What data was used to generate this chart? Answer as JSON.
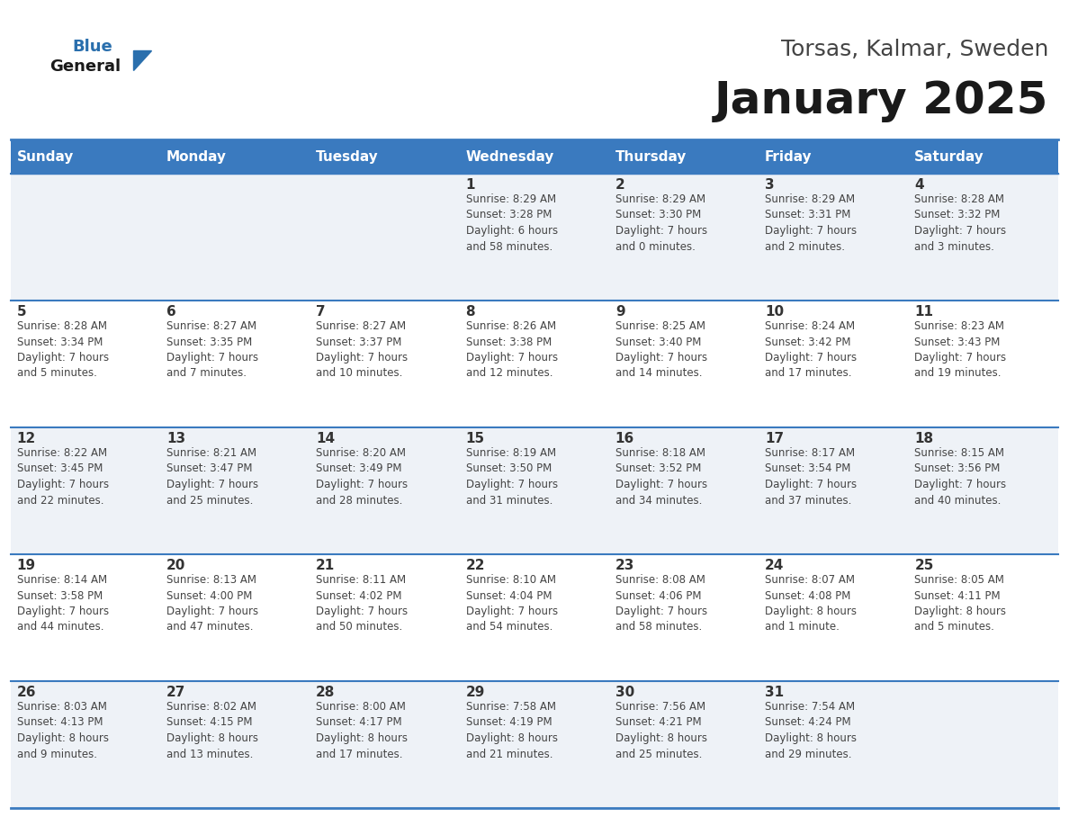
{
  "title": "January 2025",
  "subtitle": "Torsas, Kalmar, Sweden",
  "days_of_week": [
    "Sunday",
    "Monday",
    "Tuesday",
    "Wednesday",
    "Thursday",
    "Friday",
    "Saturday"
  ],
  "header_bg": "#3a7abf",
  "header_text": "#ffffff",
  "row_bg_odd": "#eef2f7",
  "row_bg_even": "#ffffff",
  "cell_border": "#3a7abf",
  "day_number_color": "#333333",
  "info_text_color": "#444444",
  "title_color": "#1a1a1a",
  "subtitle_color": "#444444",
  "logo_general_color": "#1a1a1a",
  "logo_blue_color": "#2a6fad",
  "calendar_data": [
    [
      {
        "day": "",
        "info": ""
      },
      {
        "day": "",
        "info": ""
      },
      {
        "day": "",
        "info": ""
      },
      {
        "day": "1",
        "info": "Sunrise: 8:29 AM\nSunset: 3:28 PM\nDaylight: 6 hours\nand 58 minutes."
      },
      {
        "day": "2",
        "info": "Sunrise: 8:29 AM\nSunset: 3:30 PM\nDaylight: 7 hours\nand 0 minutes."
      },
      {
        "day": "3",
        "info": "Sunrise: 8:29 AM\nSunset: 3:31 PM\nDaylight: 7 hours\nand 2 minutes."
      },
      {
        "day": "4",
        "info": "Sunrise: 8:28 AM\nSunset: 3:32 PM\nDaylight: 7 hours\nand 3 minutes."
      }
    ],
    [
      {
        "day": "5",
        "info": "Sunrise: 8:28 AM\nSunset: 3:34 PM\nDaylight: 7 hours\nand 5 minutes."
      },
      {
        "day": "6",
        "info": "Sunrise: 8:27 AM\nSunset: 3:35 PM\nDaylight: 7 hours\nand 7 minutes."
      },
      {
        "day": "7",
        "info": "Sunrise: 8:27 AM\nSunset: 3:37 PM\nDaylight: 7 hours\nand 10 minutes."
      },
      {
        "day": "8",
        "info": "Sunrise: 8:26 AM\nSunset: 3:38 PM\nDaylight: 7 hours\nand 12 minutes."
      },
      {
        "day": "9",
        "info": "Sunrise: 8:25 AM\nSunset: 3:40 PM\nDaylight: 7 hours\nand 14 minutes."
      },
      {
        "day": "10",
        "info": "Sunrise: 8:24 AM\nSunset: 3:42 PM\nDaylight: 7 hours\nand 17 minutes."
      },
      {
        "day": "11",
        "info": "Sunrise: 8:23 AM\nSunset: 3:43 PM\nDaylight: 7 hours\nand 19 minutes."
      }
    ],
    [
      {
        "day": "12",
        "info": "Sunrise: 8:22 AM\nSunset: 3:45 PM\nDaylight: 7 hours\nand 22 minutes."
      },
      {
        "day": "13",
        "info": "Sunrise: 8:21 AM\nSunset: 3:47 PM\nDaylight: 7 hours\nand 25 minutes."
      },
      {
        "day": "14",
        "info": "Sunrise: 8:20 AM\nSunset: 3:49 PM\nDaylight: 7 hours\nand 28 minutes."
      },
      {
        "day": "15",
        "info": "Sunrise: 8:19 AM\nSunset: 3:50 PM\nDaylight: 7 hours\nand 31 minutes."
      },
      {
        "day": "16",
        "info": "Sunrise: 8:18 AM\nSunset: 3:52 PM\nDaylight: 7 hours\nand 34 minutes."
      },
      {
        "day": "17",
        "info": "Sunrise: 8:17 AM\nSunset: 3:54 PM\nDaylight: 7 hours\nand 37 minutes."
      },
      {
        "day": "18",
        "info": "Sunrise: 8:15 AM\nSunset: 3:56 PM\nDaylight: 7 hours\nand 40 minutes."
      }
    ],
    [
      {
        "day": "19",
        "info": "Sunrise: 8:14 AM\nSunset: 3:58 PM\nDaylight: 7 hours\nand 44 minutes."
      },
      {
        "day": "20",
        "info": "Sunrise: 8:13 AM\nSunset: 4:00 PM\nDaylight: 7 hours\nand 47 minutes."
      },
      {
        "day": "21",
        "info": "Sunrise: 8:11 AM\nSunset: 4:02 PM\nDaylight: 7 hours\nand 50 minutes."
      },
      {
        "day": "22",
        "info": "Sunrise: 8:10 AM\nSunset: 4:04 PM\nDaylight: 7 hours\nand 54 minutes."
      },
      {
        "day": "23",
        "info": "Sunrise: 8:08 AM\nSunset: 4:06 PM\nDaylight: 7 hours\nand 58 minutes."
      },
      {
        "day": "24",
        "info": "Sunrise: 8:07 AM\nSunset: 4:08 PM\nDaylight: 8 hours\nand 1 minute."
      },
      {
        "day": "25",
        "info": "Sunrise: 8:05 AM\nSunset: 4:11 PM\nDaylight: 8 hours\nand 5 minutes."
      }
    ],
    [
      {
        "day": "26",
        "info": "Sunrise: 8:03 AM\nSunset: 4:13 PM\nDaylight: 8 hours\nand 9 minutes."
      },
      {
        "day": "27",
        "info": "Sunrise: 8:02 AM\nSunset: 4:15 PM\nDaylight: 8 hours\nand 13 minutes."
      },
      {
        "day": "28",
        "info": "Sunrise: 8:00 AM\nSunset: 4:17 PM\nDaylight: 8 hours\nand 17 minutes."
      },
      {
        "day": "29",
        "info": "Sunrise: 7:58 AM\nSunset: 4:19 PM\nDaylight: 8 hours\nand 21 minutes."
      },
      {
        "day": "30",
        "info": "Sunrise: 7:56 AM\nSunset: 4:21 PM\nDaylight: 8 hours\nand 25 minutes."
      },
      {
        "day": "31",
        "info": "Sunrise: 7:54 AM\nSunset: 4:24 PM\nDaylight: 8 hours\nand 29 minutes."
      },
      {
        "day": "",
        "info": ""
      }
    ]
  ]
}
